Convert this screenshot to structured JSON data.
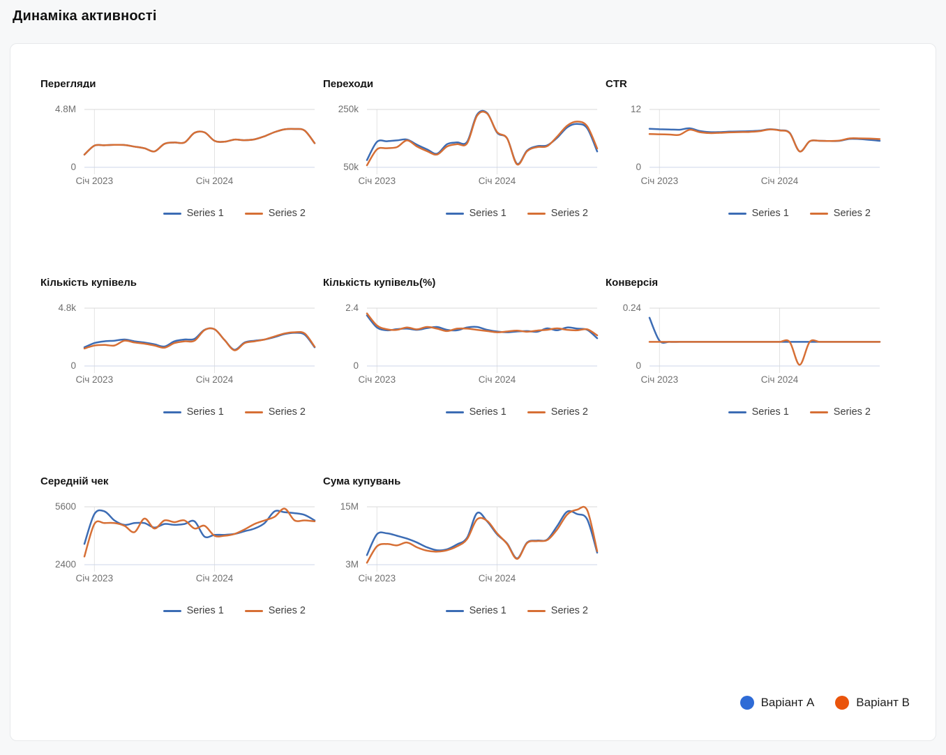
{
  "page": {
    "title": "Динаміка активності"
  },
  "x_ticks": [
    "Січ 2023",
    "Січ 2024"
  ],
  "x_tick_indices": [
    1,
    13
  ],
  "n_points": 24,
  "series_labels": [
    "Series 1",
    "Series 2"
  ],
  "colors": {
    "series1_line": "#3c6cb4",
    "series2_line": "#d66f35",
    "variant_a": "#2e6bd6",
    "variant_b": "#ea540b",
    "grid_vertical": "#e2e2e2",
    "grid_top": "#d8d8d8",
    "grid_bottom": "#ccd6e8"
  },
  "bottom_legend": [
    {
      "label": "Варіант A",
      "color": "#2e6bd6"
    },
    {
      "label": "Варіант B",
      "color": "#ea540b"
    }
  ],
  "chart_data": [
    {
      "key": "views",
      "title": "Перегляди",
      "type": "line",
      "ylim": [
        0,
        4.8
      ],
      "y_tick_labels": [
        "4.8M",
        "0"
      ],
      "unit": "M",
      "series": [
        {
          "name": "Series 1",
          "values": [
            1.05,
            1.8,
            1.83,
            1.86,
            1.85,
            1.72,
            1.58,
            1.32,
            1.95,
            2.06,
            2.06,
            2.86,
            2.9,
            2.2,
            2.12,
            2.3,
            2.25,
            2.32,
            2.58,
            2.92,
            3.15,
            3.18,
            3.05,
            2.0
          ]
        },
        {
          "name": "Series 2",
          "values": [
            1.05,
            1.8,
            1.83,
            1.86,
            1.85,
            1.72,
            1.58,
            1.32,
            1.95,
            2.06,
            2.06,
            2.86,
            2.9,
            2.2,
            2.12,
            2.3,
            2.25,
            2.32,
            2.58,
            2.92,
            3.15,
            3.18,
            3.05,
            2.0
          ]
        }
      ]
    },
    {
      "key": "transitions",
      "title": "Переходи",
      "type": "line",
      "ylim": [
        50,
        250
      ],
      "y_tick_labels": [
        "250k",
        "50k"
      ],
      "unit": "k",
      "series": [
        {
          "name": "Series 1",
          "values": [
            75,
            138,
            140,
            143,
            146,
            128,
            112,
            97,
            130,
            136,
            138,
            232,
            238,
            170,
            150,
            62,
            108,
            123,
            126,
            152,
            188,
            200,
            185,
            105
          ]
        },
        {
          "name": "Series 2",
          "values": [
            57,
            112,
            116,
            120,
            143,
            122,
            106,
            94,
            122,
            130,
            133,
            228,
            236,
            172,
            150,
            60,
            106,
            120,
            123,
            156,
            194,
            208,
            192,
            115
          ]
        }
      ]
    },
    {
      "key": "ctr",
      "title": "CTR",
      "type": "line",
      "ylim": [
        0,
        12
      ],
      "y_tick_labels": [
        "12",
        "0"
      ],
      "unit": "",
      "series": [
        {
          "name": "Series 1",
          "values": [
            8,
            7.9,
            7.85,
            7.8,
            8.1,
            7.55,
            7.3,
            7.3,
            7.4,
            7.45,
            7.5,
            7.6,
            7.9,
            7.7,
            7.15,
            3.3,
            5.4,
            5.5,
            5.45,
            5.5,
            5.9,
            5.85,
            5.7,
            5.5
          ]
        },
        {
          "name": "Series 2",
          "values": [
            6.9,
            6.85,
            6.8,
            6.75,
            7.8,
            7.3,
            7.1,
            7.15,
            7.25,
            7.3,
            7.35,
            7.5,
            7.85,
            7.65,
            7.1,
            3.3,
            5.4,
            5.5,
            5.45,
            5.55,
            6.0,
            6.0,
            5.95,
            5.85
          ]
        }
      ]
    },
    {
      "key": "purchases",
      "title": "Кількість купівель",
      "type": "line",
      "ylim": [
        0,
        4.8
      ],
      "y_tick_labels": [
        "4.8k",
        "0"
      ],
      "unit": "k",
      "series": [
        {
          "name": "Series 1",
          "values": [
            1.55,
            1.9,
            2.05,
            2.1,
            2.2,
            2.05,
            1.95,
            1.8,
            1.62,
            2.05,
            2.2,
            2.25,
            3.0,
            3.05,
            2.15,
            1.35,
            1.95,
            2.1,
            2.2,
            2.4,
            2.65,
            2.75,
            2.6,
            1.55
          ]
        },
        {
          "name": "Series 2",
          "values": [
            1.45,
            1.7,
            1.75,
            1.7,
            2.1,
            1.95,
            1.85,
            1.7,
            1.52,
            1.9,
            2.05,
            2.1,
            2.98,
            3.05,
            2.15,
            1.3,
            1.9,
            2.05,
            2.2,
            2.45,
            2.7,
            2.8,
            2.7,
            1.6
          ]
        }
      ]
    },
    {
      "key": "purchases-pct",
      "title": "Кількість купівель(%)",
      "type": "line",
      "ylim": [
        0,
        2.4
      ],
      "y_tick_labels": [
        "2.4",
        "0"
      ],
      "unit": "%",
      "series": [
        {
          "name": "Series 1",
          "values": [
            2.1,
            1.6,
            1.48,
            1.53,
            1.55,
            1.5,
            1.57,
            1.62,
            1.5,
            1.48,
            1.6,
            1.62,
            1.5,
            1.43,
            1.4,
            1.43,
            1.45,
            1.42,
            1.56,
            1.48,
            1.6,
            1.55,
            1.5,
            1.15
          ]
        },
        {
          "name": "Series 2",
          "values": [
            2.18,
            1.68,
            1.52,
            1.5,
            1.6,
            1.52,
            1.62,
            1.55,
            1.45,
            1.55,
            1.55,
            1.5,
            1.45,
            1.4,
            1.43,
            1.47,
            1.42,
            1.47,
            1.5,
            1.56,
            1.5,
            1.48,
            1.52,
            1.27
          ]
        }
      ]
    },
    {
      "key": "conversion",
      "title": "Конверсія",
      "type": "line",
      "ylim": [
        0,
        0.24
      ],
      "y_tick_labels": [
        "0.24",
        "0"
      ],
      "unit": "",
      "series": [
        {
          "name": "Series 1",
          "values": [
            0.2,
            0.105,
            0.1,
            0.1,
            0.1,
            0.1,
            0.1,
            0.1,
            0.1,
            0.1,
            0.1,
            0.1,
            0.1,
            0.1,
            0.1,
            0.1,
            0.1,
            0.1,
            0.1,
            0.1,
            0.1,
            0.1,
            0.1,
            0.1
          ]
        },
        {
          "name": "Series 2",
          "values": [
            0.1,
            0.1,
            0.1,
            0.1,
            0.1,
            0.1,
            0.1,
            0.1,
            0.1,
            0.1,
            0.1,
            0.1,
            0.1,
            0.1,
            0.1,
            0.005,
            0.1,
            0.1,
            0.1,
            0.1,
            0.1,
            0.1,
            0.1,
            0.1
          ]
        }
      ]
    },
    {
      "key": "avg-check",
      "title": "Середній чек",
      "type": "line",
      "ylim": [
        2400,
        5600
      ],
      "y_tick_labels": [
        "5600",
        "2400"
      ],
      "unit": "",
      "series": [
        {
          "name": "Series 1",
          "values": [
            3550,
            5200,
            5350,
            4850,
            4600,
            4700,
            4700,
            4450,
            4650,
            4600,
            4650,
            4800,
            3950,
            4050,
            4050,
            4100,
            4250,
            4400,
            4700,
            5350,
            5300,
            5250,
            5150,
            4850
          ]
        },
        {
          "name": "Series 2",
          "values": [
            2850,
            4650,
            4700,
            4700,
            4550,
            4200,
            4950,
            4400,
            4850,
            4750,
            4850,
            4400,
            4550,
            4000,
            4000,
            4100,
            4350,
            4650,
            4850,
            5050,
            5500,
            4850,
            4850,
            4800
          ]
        }
      ]
    },
    {
      "key": "purchase-sum",
      "title": "Сума купувань",
      "type": "line",
      "ylim": [
        3,
        15
      ],
      "y_tick_labels": [
        "15M",
        "3M"
      ],
      "unit": "M",
      "series": [
        {
          "name": "Series 1",
          "values": [
            5.0,
            9.3,
            9.5,
            9.0,
            8.4,
            7.6,
            6.6,
            6.0,
            6.2,
            7.2,
            8.6,
            13.7,
            12.0,
            9.3,
            7.4,
            4.3,
            7.6,
            8.0,
            8.2,
            11.0,
            14.0,
            13.5,
            12.4,
            5.5
          ]
        },
        {
          "name": "Series 2",
          "values": [
            3.4,
            6.8,
            7.3,
            7.0,
            7.6,
            6.6,
            5.9,
            5.7,
            6.0,
            6.8,
            8.3,
            12.4,
            12.1,
            9.5,
            7.3,
            4.2,
            7.5,
            7.9,
            8.1,
            10.3,
            13.4,
            14.4,
            14.3,
            5.8
          ]
        }
      ]
    }
  ]
}
